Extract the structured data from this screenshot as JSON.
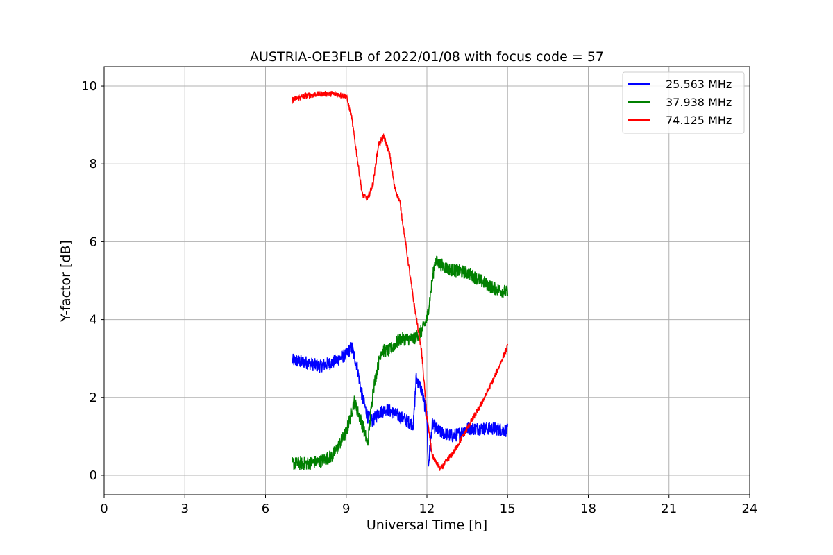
{
  "chart_data": {
    "type": "line",
    "title": "AUSTRIA-OE3FLB of 2022/01/08 with focus code = 57",
    "xlabel": "Universal Time [h]",
    "ylabel": "Y-factor [dB]",
    "xlim": [
      0,
      24
    ],
    "ylim": [
      -0.5,
      10.5
    ],
    "xticks": [
      0,
      3,
      6,
      9,
      12,
      15,
      18,
      21,
      24
    ],
    "yticks": [
      0,
      2,
      4,
      6,
      8,
      10
    ],
    "grid": true,
    "legend_position": "top-right",
    "series": [
      {
        "name": "25.563 MHz",
        "color": "#0000ff",
        "noise": 0.35,
        "x": [
          7.0,
          7.5,
          8.0,
          8.5,
          9.0,
          9.2,
          9.4,
          9.6,
          9.8,
          10.0,
          10.2,
          10.5,
          11.0,
          11.5,
          11.6,
          11.8,
          12.0,
          12.05,
          12.2,
          12.5,
          13.0,
          13.5,
          14.0,
          14.5,
          15.0
        ],
        "y": [
          2.95,
          2.9,
          2.8,
          2.9,
          3.1,
          3.3,
          2.8,
          2.0,
          1.5,
          1.4,
          1.6,
          1.7,
          1.5,
          1.3,
          2.5,
          2.2,
          1.5,
          0.2,
          1.3,
          1.1,
          1.0,
          1.2,
          1.2,
          1.2,
          1.15
        ]
      },
      {
        "name": "37.938 MHz",
        "color": "#008000",
        "noise": 0.35,
        "x": [
          7.0,
          7.5,
          8.0,
          8.5,
          9.0,
          9.3,
          9.6,
          9.8,
          10.0,
          10.3,
          10.6,
          11.0,
          11.5,
          11.8,
          12.0,
          12.3,
          12.8,
          13.5,
          14.0,
          14.5,
          15.0
        ],
        "y": [
          0.3,
          0.3,
          0.35,
          0.5,
          1.1,
          1.9,
          1.3,
          0.8,
          2.2,
          3.2,
          3.2,
          3.5,
          3.5,
          3.7,
          4.0,
          5.5,
          5.3,
          5.2,
          5.0,
          4.8,
          4.7
        ]
      },
      {
        "name": "74.125 MHz",
        "color": "#ff0000",
        "noise": 0.15,
        "x": [
          7.0,
          7.5,
          8.0,
          8.5,
          9.0,
          9.2,
          9.4,
          9.6,
          9.8,
          10.0,
          10.2,
          10.4,
          10.6,
          10.8,
          11.0,
          11.2,
          11.5,
          11.8,
          12.0,
          12.2,
          12.5,
          13.0,
          13.5,
          14.0,
          14.5,
          15.0
        ],
        "y": [
          9.65,
          9.75,
          9.8,
          9.8,
          9.75,
          9.2,
          8.2,
          7.2,
          7.1,
          7.5,
          8.5,
          8.7,
          8.3,
          7.4,
          7.0,
          6.0,
          4.5,
          3.2,
          1.5,
          0.5,
          0.15,
          0.6,
          1.2,
          1.8,
          2.5,
          3.3
        ]
      }
    ]
  }
}
